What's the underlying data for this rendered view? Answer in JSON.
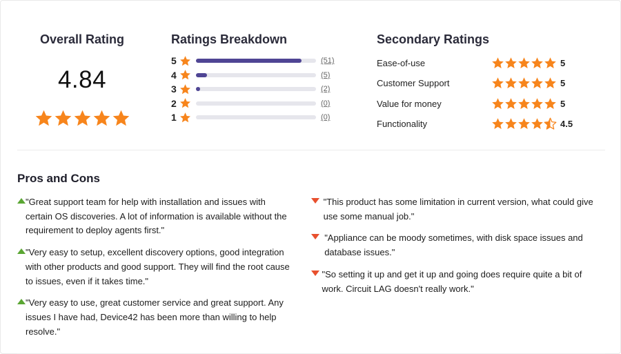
{
  "overall": {
    "title": "Overall Rating",
    "score": "4.84",
    "stars": 5
  },
  "breakdown": {
    "title": "Ratings Breakdown",
    "rows": [
      {
        "stars": "5",
        "count": "51",
        "fraction": 0.88
      },
      {
        "stars": "4",
        "count": "5",
        "fraction": 0.09
      },
      {
        "stars": "3",
        "count": "2",
        "fraction": 0.035
      },
      {
        "stars": "2",
        "count": "0",
        "fraction": 0
      },
      {
        "stars": "1",
        "count": "0",
        "fraction": 0
      }
    ]
  },
  "secondary": {
    "title": "Secondary Ratings",
    "rows": [
      {
        "label": "Ease-of-use",
        "value": "5",
        "rating": 5
      },
      {
        "label": "Customer Support",
        "value": "5",
        "rating": 5
      },
      {
        "label": "Value for money",
        "value": "5",
        "rating": 5
      },
      {
        "label": "Functionality",
        "value": "4.5",
        "rating": 4.5
      }
    ]
  },
  "pros_cons": {
    "title": "Pros and Cons",
    "pros": [
      "\"Great support team for help with installation and issues with certain OS discoveries. A lot of information is available without the requirement to deploy agents first.\"",
      "\"Very easy to setup, excellent discovery options, good integration with other products and good support. They will find the root cause to issues, even if it takes time.\"",
      "\"Very easy to use, great customer service and great support. Any issues I have had, Device42 has been more than willing to help resolve.\""
    ],
    "cons": [
      "\"This product has some limitation in current version, what could give use some manual job.\"",
      "\"Appliance can be moody sometimes, with disk space issues and database issues.\"",
      "\"So setting it up and get it up and going does require quite a bit of work. Circuit LAG doesn't really work.\""
    ]
  },
  "colors": {
    "star": "#f7851c",
    "bar": "#4f4594",
    "pro_arrow": "#5aa633",
    "con_arrow": "#e8502e"
  },
  "icons": {
    "star": "star-icon",
    "pro": "caret-up-icon",
    "con": "caret-down-icon"
  }
}
